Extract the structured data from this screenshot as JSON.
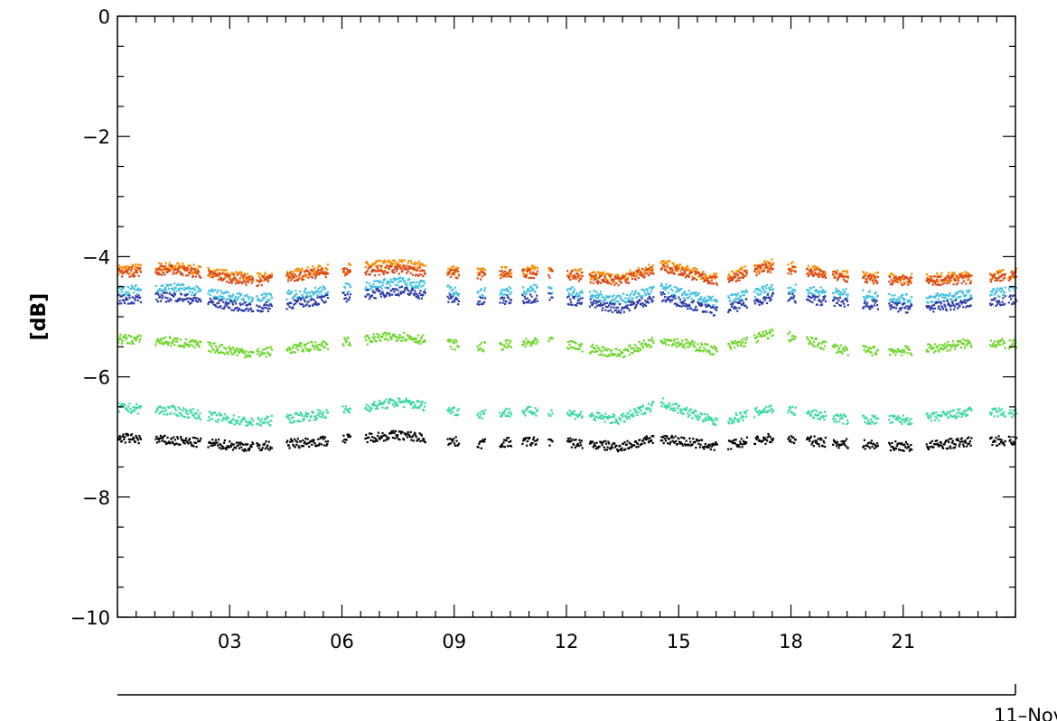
{
  "chart_data": {
    "type": "scatter",
    "title": "",
    "ylabel": "[dB]",
    "xlabel": "",
    "ylim": [
      -10,
      0
    ],
    "yticks": [
      0,
      -2,
      -4,
      -6,
      -8,
      -10
    ],
    "xlim": [
      0,
      24
    ],
    "xticks": [
      {
        "value": 3,
        "label": "03"
      },
      {
        "value": 6,
        "label": "06"
      },
      {
        "value": 9,
        "label": "09"
      },
      {
        "value": 12,
        "label": "12"
      },
      {
        "value": 15,
        "label": "15"
      },
      {
        "value": 18,
        "label": "18"
      },
      {
        "value": 21,
        "label": "21"
      }
    ],
    "date_label": "11–Nov",
    "grid": false,
    "segments": [
      [
        0.0,
        0.6
      ],
      [
        1.0,
        2.2
      ],
      [
        2.4,
        3.6
      ],
      [
        3.7,
        4.1
      ],
      [
        4.5,
        5.6
      ],
      [
        6.0,
        6.2
      ],
      [
        6.6,
        8.2
      ],
      [
        8.8,
        9.1
      ],
      [
        9.6,
        9.8
      ],
      [
        10.2,
        10.5
      ],
      [
        10.8,
        11.2
      ],
      [
        11.5,
        11.6
      ],
      [
        12.0,
        12.4
      ],
      [
        12.6,
        14.3
      ],
      [
        14.5,
        16.0
      ],
      [
        16.3,
        16.8
      ],
      [
        17.0,
        17.5
      ],
      [
        17.9,
        18.1
      ],
      [
        18.4,
        18.9
      ],
      [
        19.1,
        19.5
      ],
      [
        19.9,
        20.3
      ],
      [
        20.6,
        21.2
      ],
      [
        21.6,
        22.8
      ],
      [
        23.3,
        23.7
      ],
      [
        23.8,
        24.0
      ]
    ],
    "series": [
      {
        "color": "#ff8c00",
        "x": [
          0,
          1.5,
          3.6,
          5.5,
          7.5,
          9.5,
          11.5,
          13.4,
          14.5,
          16.0,
          17.5,
          19.5,
          21.3,
          23.0,
          24.0
        ],
        "y": [
          -4.2,
          -4.15,
          -4.35,
          -4.2,
          -4.1,
          -4.25,
          -4.2,
          -4.35,
          -4.1,
          -4.35,
          -4.1,
          -4.3,
          -4.35,
          -4.3,
          -4.25
        ]
      },
      {
        "color": "#d9461a",
        "x": [
          0,
          1.5,
          3.6,
          5.5,
          7.5,
          9.5,
          11.5,
          13.4,
          14.5,
          16.0,
          17.5,
          19.5,
          21.3,
          23.0,
          24.0
        ],
        "y": [
          -4.25,
          -4.2,
          -4.4,
          -4.25,
          -4.2,
          -4.3,
          -4.25,
          -4.4,
          -4.15,
          -4.4,
          -4.15,
          -4.35,
          -4.4,
          -4.35,
          -4.3
        ]
      },
      {
        "color": "#40c0e0",
        "x": [
          0,
          1.5,
          3.6,
          5.5,
          7.5,
          9.5,
          11.5,
          13.4,
          14.5,
          16.0,
          17.5,
          19.5,
          21.3,
          23.0,
          24.0
        ],
        "y": [
          -4.55,
          -4.5,
          -4.7,
          -4.55,
          -4.4,
          -4.6,
          -4.5,
          -4.7,
          -4.5,
          -4.75,
          -4.5,
          -4.6,
          -4.7,
          -4.6,
          -4.55
        ]
      },
      {
        "color": "#2a3aa8",
        "x": [
          0,
          1.5,
          3.6,
          5.5,
          7.5,
          9.5,
          11.5,
          13.4,
          14.5,
          16.0,
          17.5,
          19.5,
          21.3,
          23.0,
          24.0
        ],
        "y": [
          -4.7,
          -4.65,
          -4.85,
          -4.7,
          -4.55,
          -4.75,
          -4.65,
          -4.85,
          -4.65,
          -4.9,
          -4.65,
          -4.75,
          -4.85,
          -4.75,
          -4.7
        ]
      },
      {
        "color": "#6cd62a",
        "x": [
          0,
          1.5,
          3.6,
          5.5,
          7.5,
          9.5,
          11.5,
          13.4,
          14.5,
          16.0,
          17.5,
          19.5,
          21.3,
          23.0,
          24.0
        ],
        "y": [
          -5.35,
          -5.4,
          -5.6,
          -5.45,
          -5.3,
          -5.5,
          -5.4,
          -5.6,
          -5.35,
          -5.55,
          -5.25,
          -5.55,
          -5.55,
          -5.4,
          -5.45
        ]
      },
      {
        "color": "#3ad9a0",
        "x": [
          0,
          1.5,
          3.6,
          5.5,
          7.5,
          9.5,
          11.5,
          13.4,
          14.5,
          16.0,
          17.5,
          19.5,
          21.3,
          23.0,
          24.0
        ],
        "y": [
          -6.5,
          -6.55,
          -6.75,
          -6.6,
          -6.4,
          -6.6,
          -6.55,
          -6.7,
          -6.4,
          -6.75,
          -6.5,
          -6.7,
          -6.7,
          -6.55,
          -6.6
        ]
      },
      {
        "color": "#000000",
        "x": [
          0,
          1.5,
          3.6,
          5.5,
          7.5,
          9.5,
          11.5,
          13.4,
          14.5,
          16.0,
          17.5,
          19.5,
          21.3,
          23.0,
          24.0
        ],
        "y": [
          -7.0,
          -7.05,
          -7.15,
          -7.05,
          -6.95,
          -7.1,
          -7.05,
          -7.15,
          -7.0,
          -7.15,
          -7.0,
          -7.1,
          -7.15,
          -7.05,
          -7.05
        ]
      }
    ]
  }
}
